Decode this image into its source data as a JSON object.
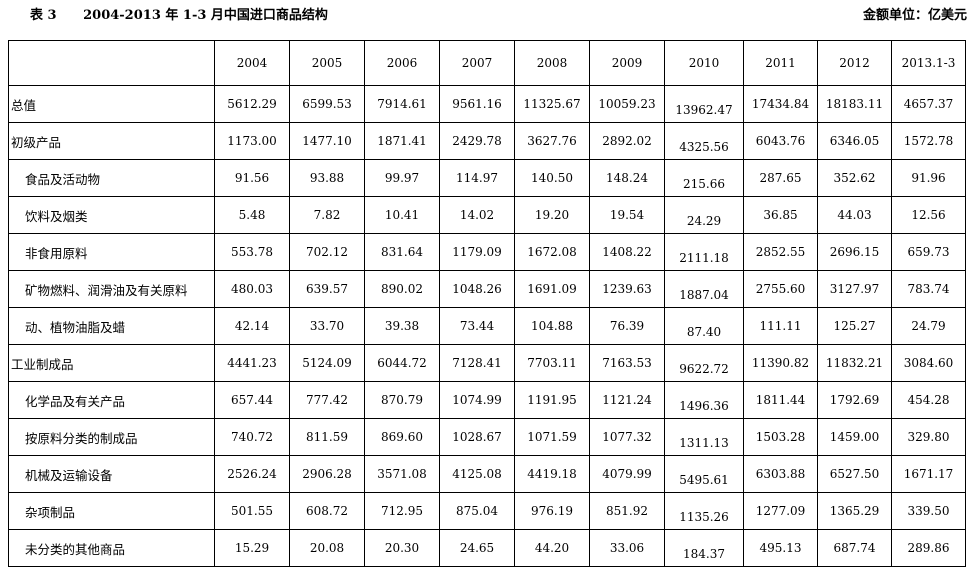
{
  "header": {
    "table_no": "表 3",
    "title": "2004-2013 年 1-3 月中国进口商品结构",
    "unit": "金额单位：亿美元"
  },
  "table": {
    "columns": [
      "",
      "2004",
      "2005",
      "2006",
      "2007",
      "2008",
      "2009",
      "2010",
      "2011",
      "2012",
      "2013.1-3"
    ],
    "rows": [
      {
        "label": "总值",
        "sub": false,
        "values": [
          "5612.29",
          "6599.53",
          "7914.61",
          "9561.16",
          "11325.67",
          "10059.23",
          "13962.47",
          "17434.84",
          "18183.11",
          "4657.37"
        ]
      },
      {
        "label": "初级产品",
        "sub": false,
        "values": [
          "1173.00",
          "1477.10",
          "1871.41",
          "2429.78",
          "3627.76",
          "2892.02",
          "4325.56",
          "6043.76",
          "6346.05",
          "1572.78"
        ]
      },
      {
        "label": "食品及活动物",
        "sub": true,
        "values": [
          "91.56",
          "93.88",
          "99.97",
          "114.97",
          "140.50",
          "148.24",
          "215.66",
          "287.65",
          "352.62",
          "91.96"
        ]
      },
      {
        "label": "饮料及烟类",
        "sub": true,
        "values": [
          "5.48",
          "7.82",
          "10.41",
          "14.02",
          "19.20",
          "19.54",
          "24.29",
          "36.85",
          "44.03",
          "12.56"
        ]
      },
      {
        "label": "非食用原料",
        "sub": true,
        "values": [
          "553.78",
          "702.12",
          "831.64",
          "1179.09",
          "1672.08",
          "1408.22",
          "2111.18",
          "2852.55",
          "2696.15",
          "659.73"
        ]
      },
      {
        "label": "矿物燃料、润滑油及有关原料",
        "sub": true,
        "values": [
          "480.03",
          "639.57",
          "890.02",
          "1048.26",
          "1691.09",
          "1239.63",
          "1887.04",
          "2755.60",
          "3127.97",
          "783.74"
        ]
      },
      {
        "label": "动、植物油脂及蜡",
        "sub": true,
        "values": [
          "42.14",
          "33.70",
          "39.38",
          "73.44",
          "104.88",
          "76.39",
          "87.40",
          "111.11",
          "125.27",
          "24.79"
        ]
      },
      {
        "label": "工业制成品",
        "sub": false,
        "values": [
          "4441.23",
          "5124.09",
          "6044.72",
          "7128.41",
          "7703.11",
          "7163.53",
          "9622.72",
          "11390.82",
          "11832.21",
          "3084.60"
        ]
      },
      {
        "label": "化学品及有关产品",
        "sub": true,
        "values": [
          "657.44",
          "777.42",
          "870.79",
          "1074.99",
          "1191.95",
          "1121.24",
          "1496.36",
          "1811.44",
          "1792.69",
          "454.28"
        ]
      },
      {
        "label": "按原料分类的制成品",
        "sub": true,
        "values": [
          "740.72",
          "811.59",
          "869.60",
          "1028.67",
          "1071.59",
          "1077.32",
          "1311.13",
          "1503.28",
          "1459.00",
          "329.80"
        ]
      },
      {
        "label": "机械及运输设备",
        "sub": true,
        "values": [
          "2526.24",
          "2906.28",
          "3571.08",
          "4125.08",
          "4419.18",
          "4079.99",
          "5495.61",
          "6303.88",
          "6527.50",
          "1671.17"
        ]
      },
      {
        "label": "杂项制品",
        "sub": true,
        "values": [
          "501.55",
          "608.72",
          "712.95",
          "875.04",
          "976.19",
          "851.92",
          "1135.26",
          "1277.09",
          "1365.29",
          "339.50"
        ]
      },
      {
        "label": "未分类的其他商品",
        "sub": true,
        "values": [
          "15.29",
          "20.08",
          "20.30",
          "24.65",
          "44.20",
          "33.06",
          "184.37",
          "495.13",
          "687.74",
          "289.86"
        ]
      }
    ]
  }
}
